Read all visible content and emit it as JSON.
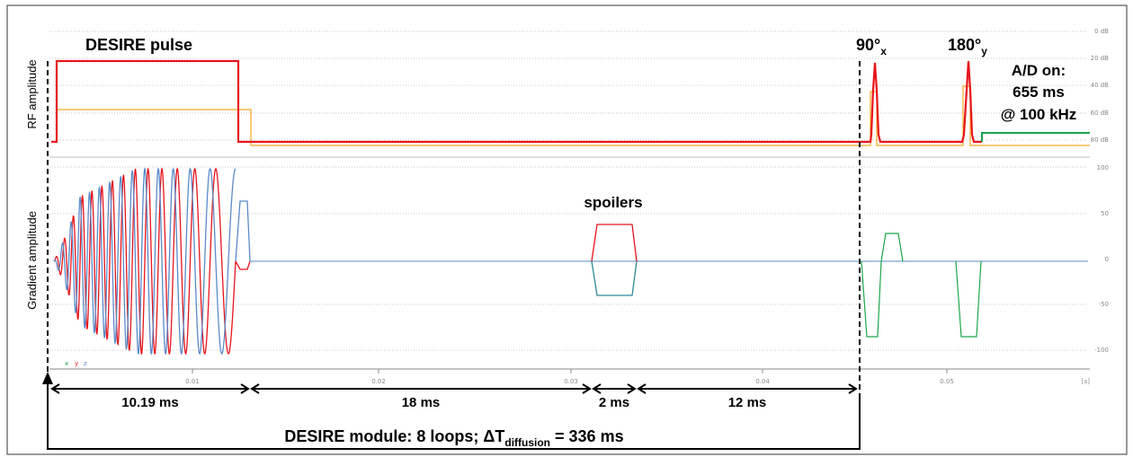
{
  "labels": {
    "rf_axis": "RF amplitude",
    "grad_axis": "Gradient amplitude",
    "desire_pulse": "DESIRE pulse",
    "pulse90": "90°",
    "pulse90_sub": "x",
    "pulse180": "180°",
    "pulse180_sub": "y",
    "ad_line1": "A/D on:",
    "ad_line2": "655 ms",
    "ad_line3": "@ 100 kHz",
    "spoilers": "spoilers",
    "legend_x": "x",
    "legend_y": "y",
    "legend_z": "z",
    "unit_s": "[s]",
    "module_main": "DESIRE module: 8 loops; ΔT",
    "module_sub": "diffusion",
    "module_end": " = 336 ms"
  },
  "rf_db_ticks": [
    "0 dB",
    "20 dB",
    "40 dB",
    "60 dB",
    "80 dB"
  ],
  "grad_ticks": [
    "100",
    "50",
    "0",
    "-50",
    "-100"
  ],
  "time_ticks": [
    "0.01",
    "0.02",
    "0.03",
    "0.04",
    "0.05"
  ],
  "durations": [
    "10.19 ms",
    "18 ms",
    "2 ms",
    "12 ms"
  ],
  "colors": {
    "rf_red": "#e8141c",
    "rf_orange": "#f5a623",
    "ad_green": "#1aa64a",
    "grad_x": "#2db35d",
    "grad_y": "#e8141c",
    "grad_z": "#5b8ac8",
    "spoiler_teal": "#2c8a99"
  }
}
